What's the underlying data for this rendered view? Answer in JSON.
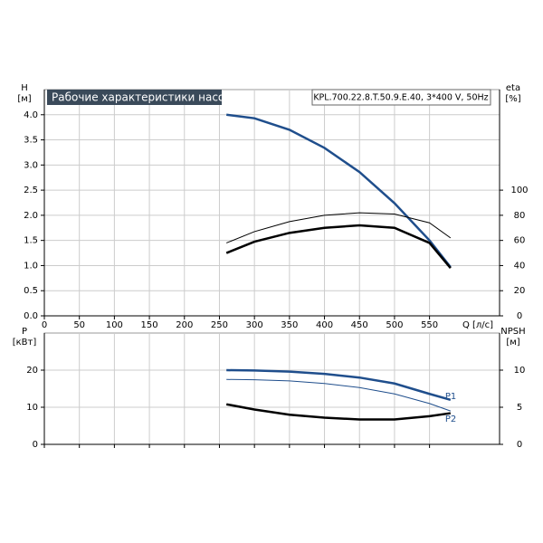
{
  "chart_data": [
    {
      "type": "line",
      "title": "Рабочие характеристики насоса",
      "subtitle": "KPL.700.22.8.T.50.9.E.40, 3*400 V, 50Hz",
      "ylabel": "H",
      "yunit": "[м]",
      "y2label": "eta",
      "y2unit": "[%]",
      "xlabel": "Q [л/с]",
      "xlim": [
        0,
        650
      ],
      "xticks": [
        0,
        50,
        100,
        150,
        200,
        250,
        300,
        350,
        400,
        450,
        500,
        550
      ],
      "show_xtick_labels": true,
      "ylim": [
        0,
        4.5
      ],
      "yticks": [
        {
          "value": 0,
          "label": "0.0"
        },
        {
          "value": 0.5,
          "label": "0.5"
        },
        {
          "value": 1,
          "label": "1.0"
        },
        {
          "value": 1.5,
          "label": "1.5"
        },
        {
          "value": 2,
          "label": "2.0"
        },
        {
          "value": 2.5,
          "label": "2.5"
        },
        {
          "value": 3,
          "label": "3.0"
        },
        {
          "value": 3.5,
          "label": "3.5"
        },
        {
          "value": 4,
          "label": "4.0"
        }
      ],
      "y2lim": [
        0,
        180
      ],
      "y2ticks": [
        0,
        20,
        40,
        60,
        80,
        100
      ],
      "grid": true,
      "x": [
        260,
        300,
        350,
        400,
        450,
        500,
        550,
        580
      ],
      "series": [
        {
          "color": "#1f4e8c",
          "linewidth": 2.5,
          "values": [
            4.0,
            3.93,
            3.7,
            3.34,
            2.86,
            2.24,
            1.5,
            0.97
          ]
        },
        {
          "color": "#000000",
          "linewidth": 1,
          "axis": "y2",
          "values": [
            58,
            67,
            75,
            80,
            82,
            81,
            74,
            62
          ]
        },
        {
          "color": "#000000",
          "linewidth": 2.5,
          "axis": "y2",
          "values": [
            50,
            59,
            66,
            70,
            72,
            70,
            58,
            38
          ]
        }
      ]
    },
    {
      "type": "line",
      "ylabel": "P",
      "yunit": "[кВт]",
      "y2label": "NPSH",
      "y2unit": "[м]",
      "xlim": [
        0,
        650
      ],
      "xticks": [
        0,
        50,
        100,
        150,
        200,
        250,
        300,
        350,
        400,
        450,
        500,
        550
      ],
      "show_xtick_labels": false,
      "ylim": [
        0,
        30
      ],
      "yticks": [
        0,
        10,
        20
      ],
      "y2lim": [
        0,
        15
      ],
      "y2ticks": [
        0,
        5,
        10
      ],
      "grid": true,
      "x": [
        260,
        300,
        350,
        400,
        450,
        500,
        550,
        580
      ],
      "series": [
        {
          "name": "P1",
          "color": "#1f4e8c",
          "linewidth": 2.5,
          "values": [
            20,
            19.9,
            19.6,
            19.0,
            18.0,
            16.4,
            13.6,
            12
          ]
        },
        {
          "name": "P2",
          "color": "#1f4e8c",
          "linewidth": 1,
          "values": [
            17.5,
            17.4,
            17.1,
            16.4,
            15.3,
            13.6,
            11.0,
            9
          ]
        },
        {
          "color": "#000000",
          "linewidth": 2.5,
          "axis": "y2",
          "values": [
            5.4,
            4.7,
            4.0,
            3.6,
            3.35,
            3.35,
            3.8,
            4.2
          ]
        }
      ]
    }
  ]
}
